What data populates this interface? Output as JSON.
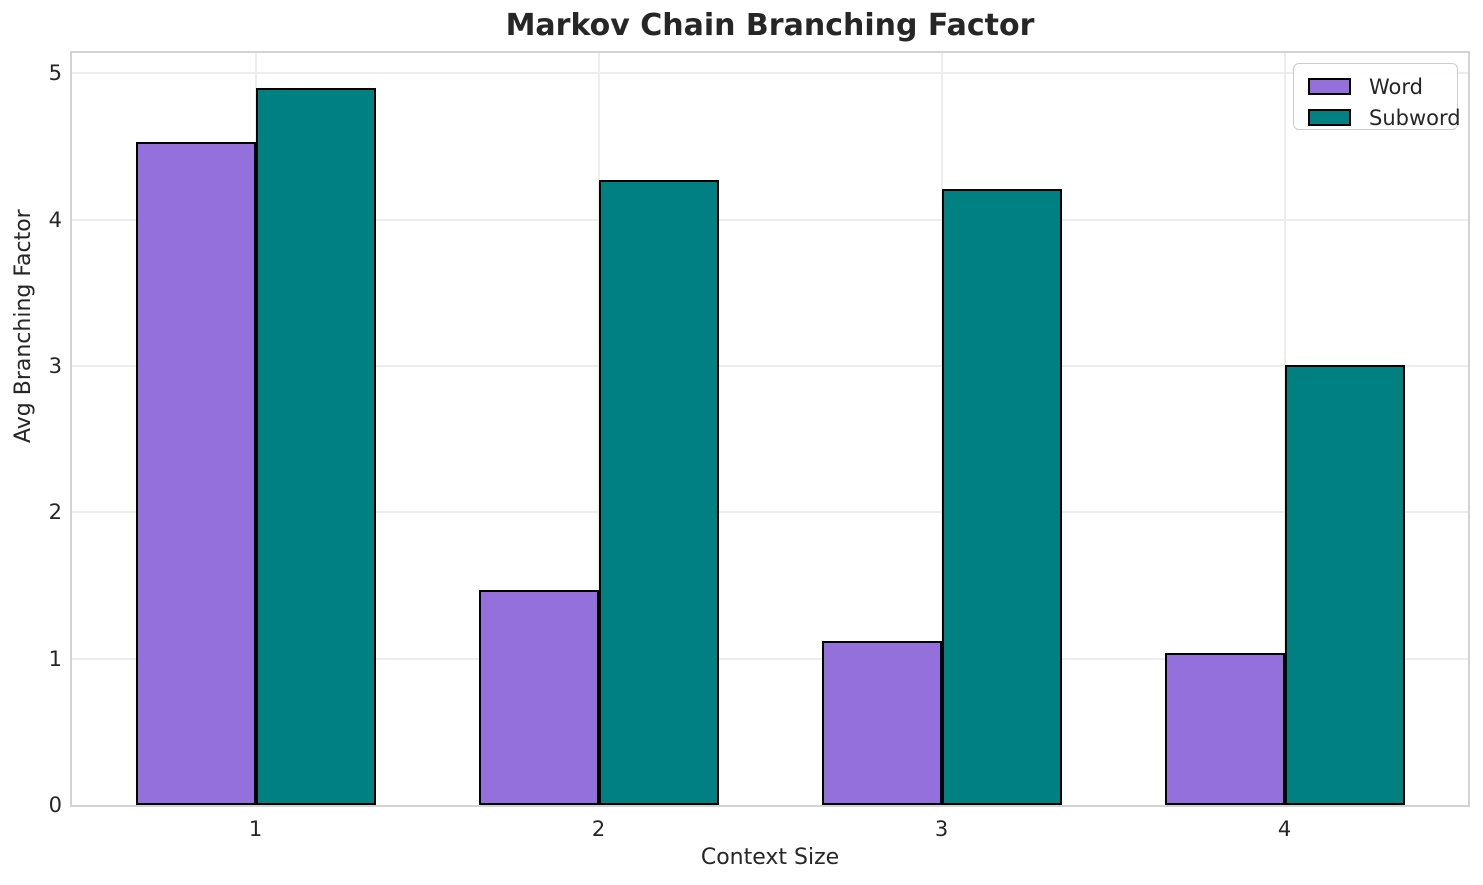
{
  "chart_data": {
    "type": "bar",
    "title": "Markov Chain Branching Factor",
    "xlabel": "Context Size",
    "ylabel": "Avg Branching Factor",
    "categories": [
      "1",
      "2",
      "3",
      "4"
    ],
    "series": [
      {
        "name": "Word",
        "color": "#9370DB",
        "values": [
          4.53,
          1.47,
          1.12,
          1.04
        ]
      },
      {
        "name": "Subword",
        "color": "#008080",
        "values": [
          4.9,
          4.27,
          4.21,
          3.01
        ]
      }
    ],
    "ylim": [
      0,
      5.14
    ],
    "yticks": [
      0,
      1,
      2,
      3,
      4,
      5
    ],
    "grid": true,
    "legend_position": "upper right",
    "bar_edge_color": "#000000",
    "colors": {
      "text": "#262626",
      "gridline": "#ededed",
      "spine": "#d3d3d3"
    }
  }
}
